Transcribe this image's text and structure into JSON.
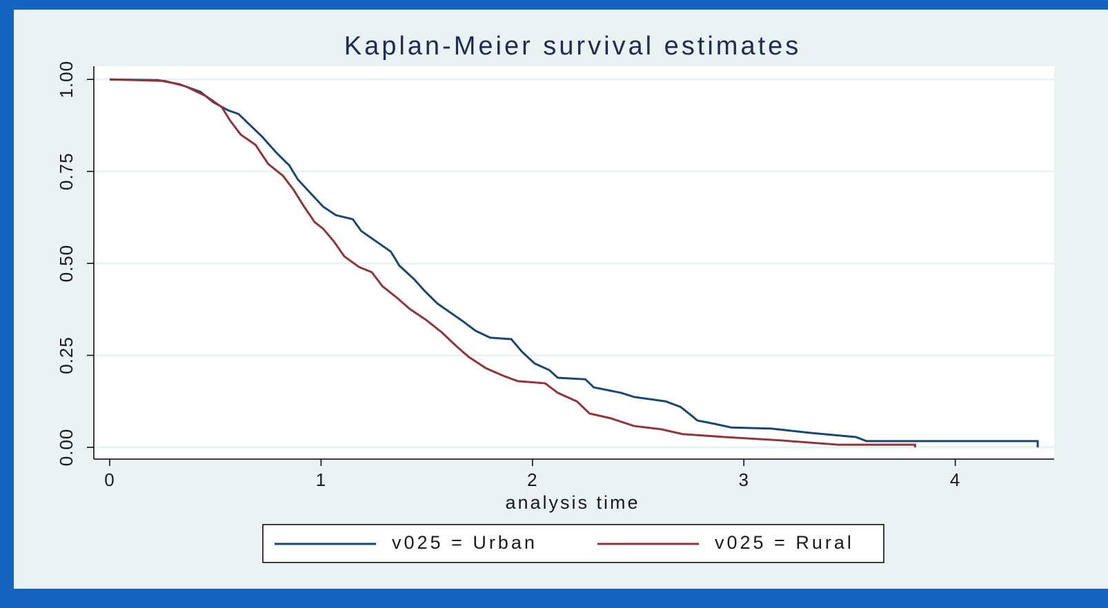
{
  "chart_data": {
    "type": "line",
    "title": "Kaplan-Meier survival estimates",
    "x_label": "analysis time",
    "xlim": [
      -0.075,
      4.468
    ],
    "ylim": [
      -0.032,
      1.036
    ],
    "xticks": [
      0,
      1,
      2,
      3,
      4
    ],
    "yticks": [
      {
        "value": 0,
        "label": "0.00"
      },
      {
        "value": 0.25,
        "label": "0.25"
      },
      {
        "value": 0.5,
        "label": "0.50"
      },
      {
        "value": 0.75,
        "label": "0.75"
      },
      {
        "value": 1,
        "label": "1.00"
      }
    ],
    "grid": true,
    "legend": "bottom",
    "series": [
      {
        "name": "v025 = Urban",
        "color": "#1a476f",
        "x": [
          0,
          0.23,
          0.33,
          0.43,
          0.49,
          0.56,
          0.61,
          0.66,
          0.72,
          0.79,
          0.85,
          0.89,
          0.95,
          1.01,
          1.07,
          1.15,
          1.19,
          1.26,
          1.33,
          1.37,
          1.44,
          1.49,
          1.55,
          1.62,
          1.67,
          1.73,
          1.8,
          1.9,
          1.95,
          2.01,
          2.08,
          2.12,
          2.25,
          2.29,
          2.42,
          2.48,
          2.63,
          2.7,
          2.74,
          2.78,
          2.86,
          2.94,
          3.13,
          3.32,
          3.53,
          3.58,
          4.39,
          4.39
        ],
        "values": [
          1.0,
          0.998,
          0.987,
          0.966,
          0.938,
          0.916,
          0.906,
          0.878,
          0.845,
          0.8,
          0.766,
          0.728,
          0.691,
          0.654,
          0.631,
          0.62,
          0.588,
          0.56,
          0.532,
          0.494,
          0.457,
          0.425,
          0.391,
          0.363,
          0.343,
          0.317,
          0.298,
          0.294,
          0.26,
          0.228,
          0.21,
          0.189,
          0.185,
          0.163,
          0.148,
          0.137,
          0.125,
          0.11,
          0.092,
          0.073,
          0.064,
          0.054,
          0.051,
          0.039,
          0.028,
          0.017,
          0.017,
          0.0
        ]
      },
      {
        "name": "v025 = Rural",
        "color": "#90353b",
        "x": [
          0,
          0.26,
          0.36,
          0.46,
          0.53,
          0.57,
          0.62,
          0.69,
          0.75,
          0.82,
          0.87,
          0.92,
          0.97,
          1.01,
          1.06,
          1.11,
          1.18,
          1.24,
          1.29,
          1.36,
          1.42,
          1.5,
          1.57,
          1.64,
          1.7,
          1.78,
          1.86,
          1.93,
          2.06,
          2.12,
          2.21,
          2.27,
          2.37,
          2.48,
          2.61,
          2.71,
          2.91,
          3.17,
          3.45,
          3.81,
          3.81
        ],
        "values": [
          1.0,
          0.996,
          0.981,
          0.953,
          0.925,
          0.888,
          0.85,
          0.822,
          0.77,
          0.738,
          0.7,
          0.654,
          0.612,
          0.594,
          0.56,
          0.519,
          0.49,
          0.476,
          0.438,
          0.406,
          0.376,
          0.345,
          0.313,
          0.275,
          0.245,
          0.215,
          0.195,
          0.18,
          0.174,
          0.148,
          0.125,
          0.092,
          0.079,
          0.058,
          0.049,
          0.036,
          0.028,
          0.019,
          0.007,
          0.007,
          0.0
        ]
      }
    ]
  }
}
